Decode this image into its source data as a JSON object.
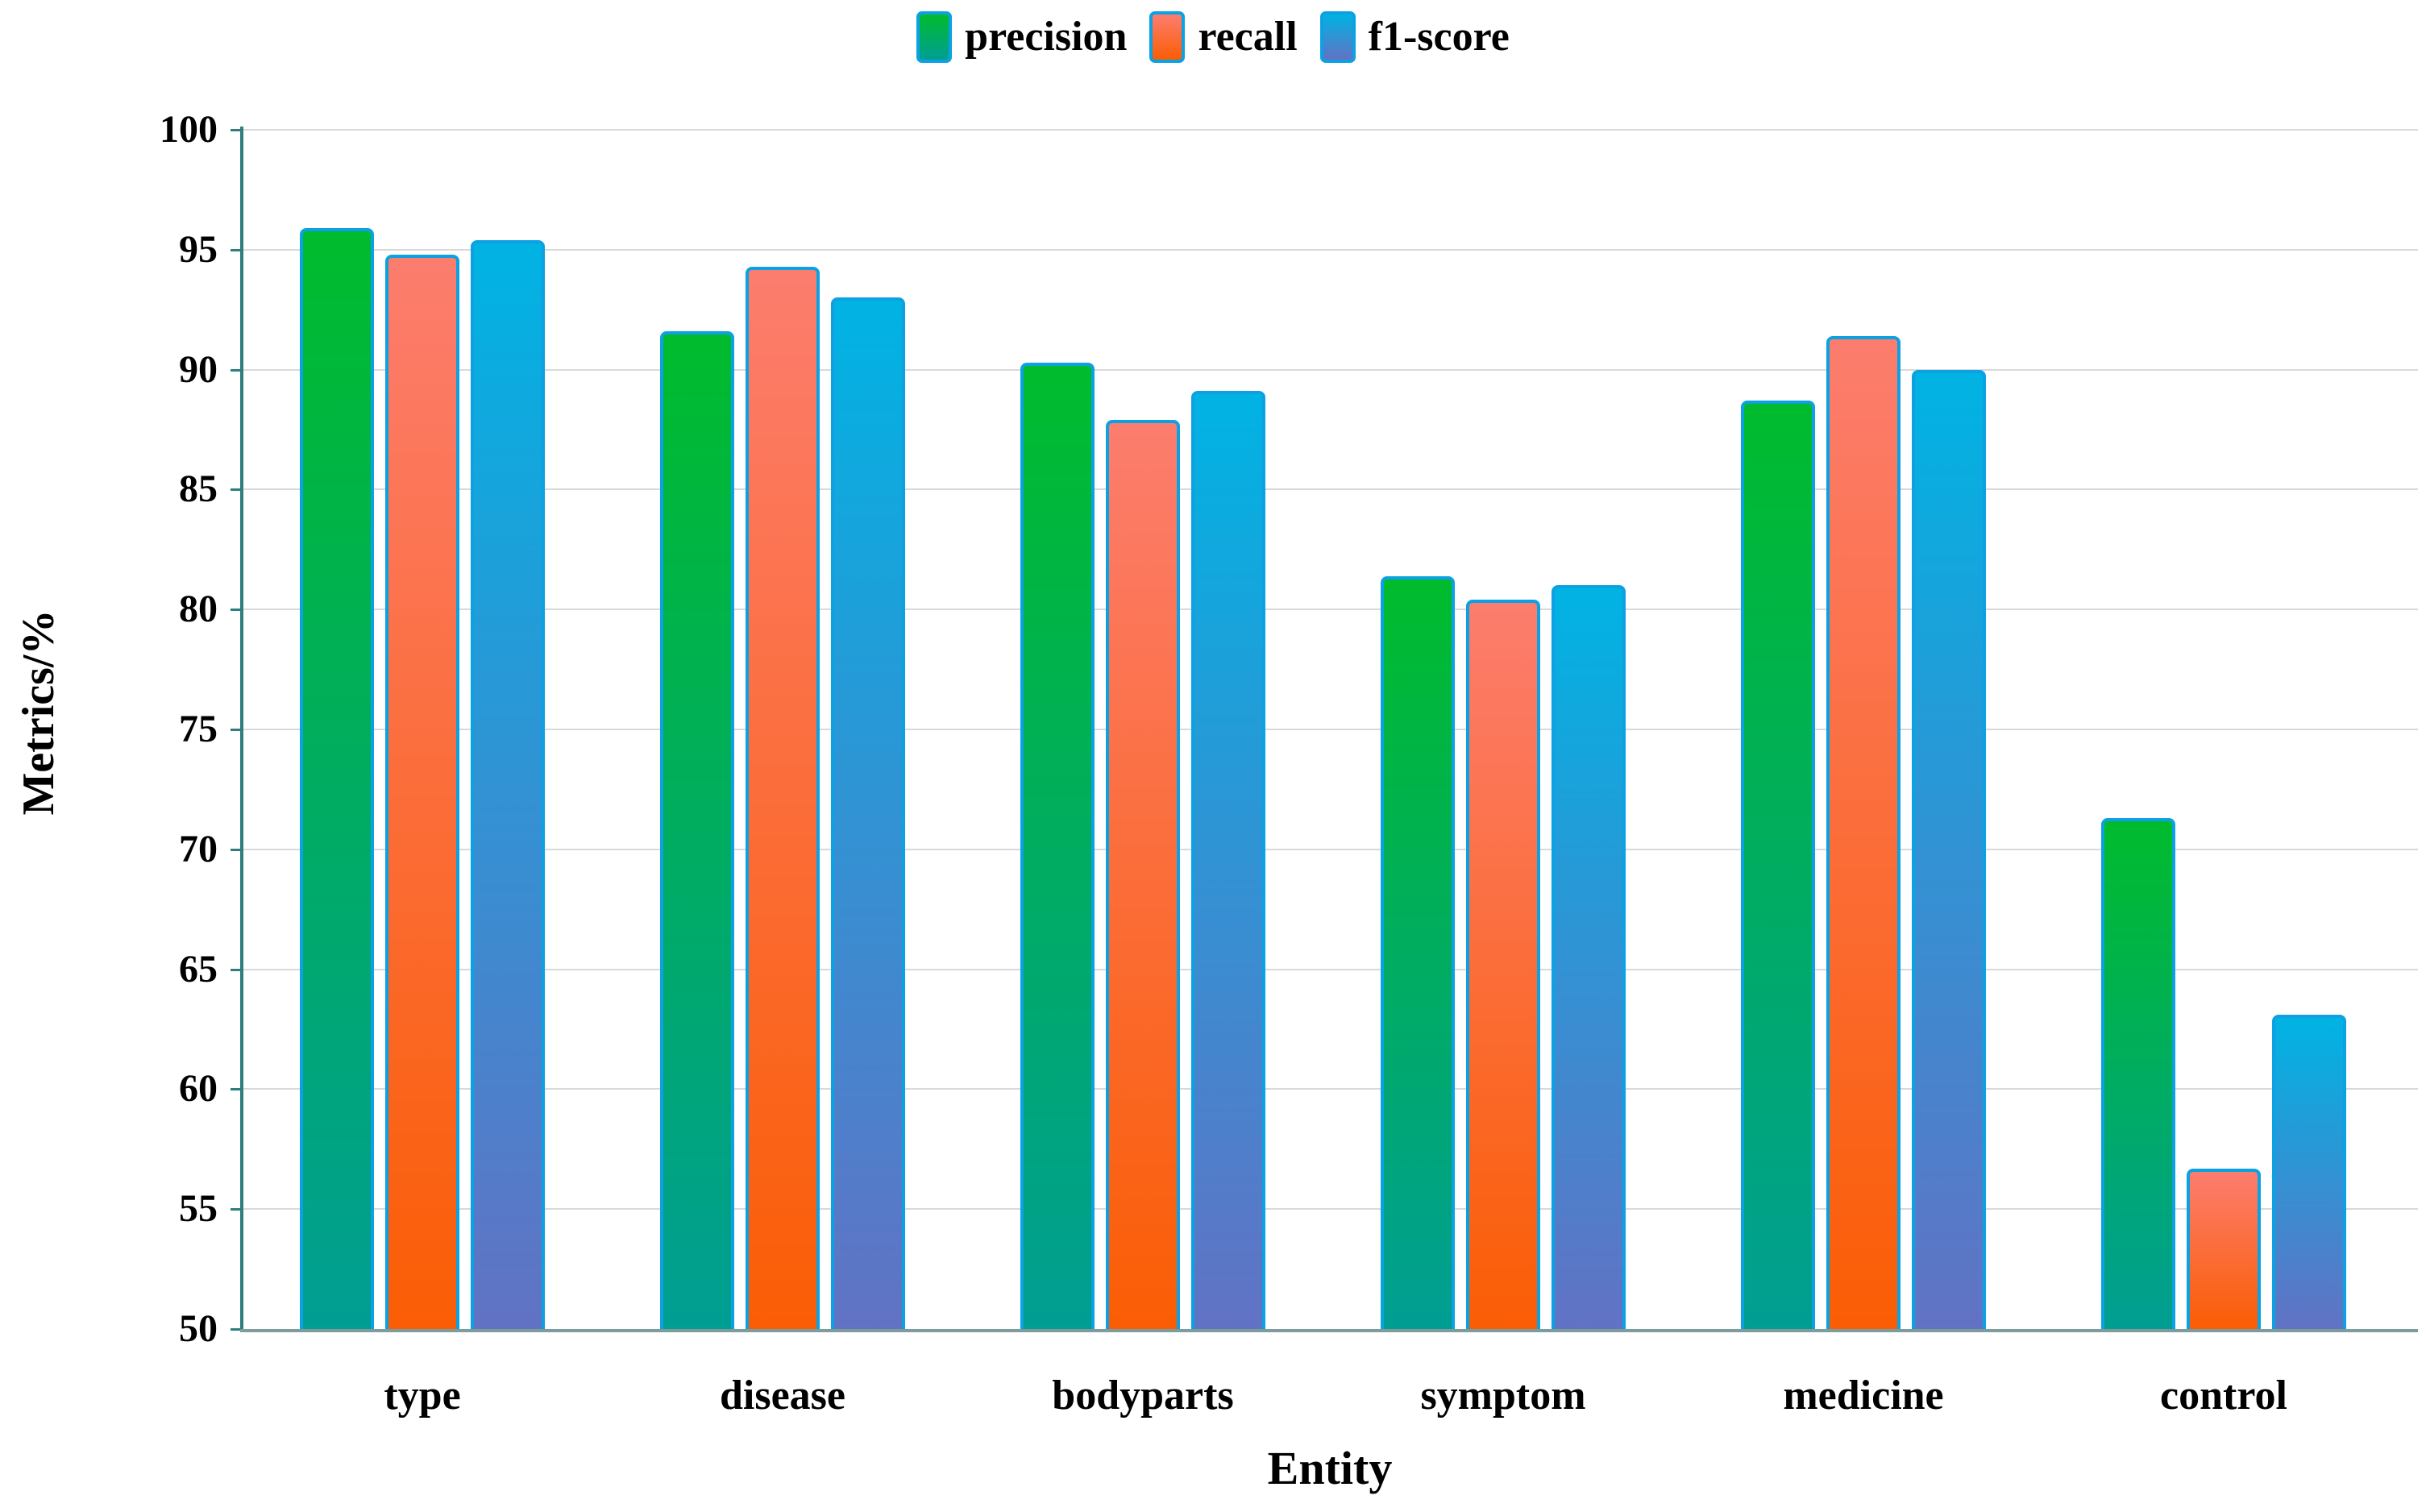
{
  "chart_data": {
    "type": "bar",
    "title": "",
    "categories": [
      "type",
      "disease",
      "bodyparts",
      "symptom",
      "medicine",
      "control"
    ],
    "series": [
      {
        "name": "precision",
        "values": [
          95.9,
          91.6,
          90.3,
          81.4,
          88.7,
          71.3
        ],
        "color_top": "#00BB2D",
        "color_bottom": "#009E93"
      },
      {
        "name": "recall",
        "values": [
          94.8,
          94.3,
          87.9,
          80.4,
          91.4,
          56.7
        ],
        "color_top": "#FC7D6E",
        "color_bottom": "#FA5D04"
      },
      {
        "name": "f1-score",
        "values": [
          95.4,
          93.0,
          89.1,
          81.0,
          90.0,
          63.1
        ],
        "color_top": "#00B3E3",
        "color_bottom": "#6272C4"
      }
    ],
    "xlabel": "Entity",
    "ylabel": "Metrics/%",
    "ylim": [
      50,
      100
    ],
    "ytick_step": 5,
    "yticks": [
      50,
      55,
      60,
      65,
      70,
      75,
      80,
      85,
      90,
      95,
      100
    ],
    "grid": true,
    "legend_position": "top-center",
    "bar_border_color": "#0BA1E2",
    "gridline_color": "#D9D9D9",
    "axis_color": "#2F7D7D",
    "baseline_color": "#7F9C9C",
    "text_color": "#000000"
  }
}
